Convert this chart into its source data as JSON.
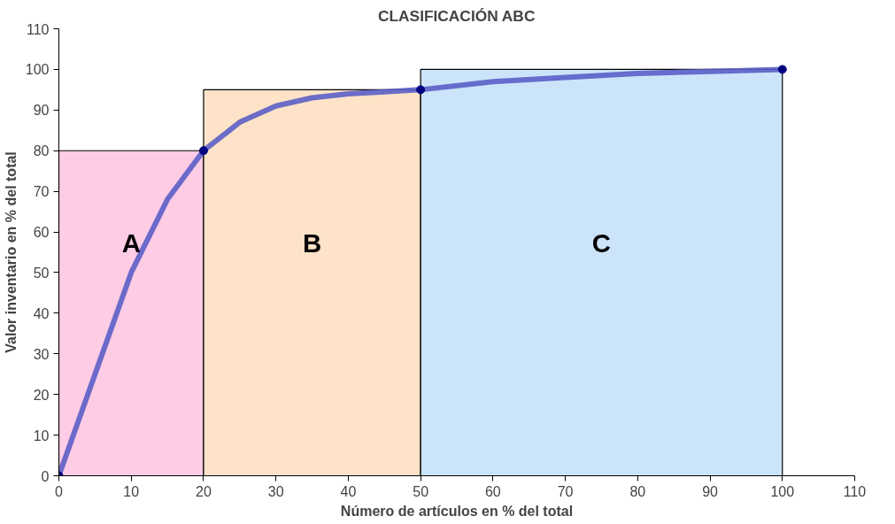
{
  "chart_data": {
    "type": "line",
    "title": "CLASIFICACIÓN ABC",
    "xlabel": "Número de artículos en % del total",
    "ylabel": "Valor inventario en % del total",
    "xlim": [
      0,
      110
    ],
    "ylim": [
      0,
      110
    ],
    "xticks": [
      0,
      10,
      20,
      30,
      40,
      50,
      60,
      70,
      80,
      90,
      100,
      110
    ],
    "yticks": [
      0,
      10,
      20,
      30,
      40,
      50,
      60,
      70,
      80,
      90,
      100,
      110
    ],
    "grid": false,
    "series": [
      {
        "type": "area",
        "color": "#ffcce6",
        "x": [
          0,
          20
        ],
        "values": [
          80,
          80
        ]
      },
      {
        "type": "area",
        "color": "#ffe3c8",
        "x": [
          20,
          50
        ],
        "values": [
          95,
          95
        ]
      },
      {
        "type": "area",
        "color": "#cce4fa",
        "x": [
          50,
          100
        ],
        "values": [
          100,
          100
        ]
      },
      {
        "color": "#5b5fc7",
        "marker": "none",
        "x": [
          0,
          5,
          10,
          15,
          20,
          25,
          30,
          35,
          40,
          45,
          50,
          60,
          70,
          80,
          90,
          100
        ],
        "values": [
          0,
          25,
          50,
          68,
          80,
          87,
          91,
          93,
          94,
          94.5,
          95,
          97,
          98,
          99,
          99.5,
          100
        ]
      },
      {
        "type": "scatter",
        "color": "#000080",
        "marker": "circle",
        "x": [
          0,
          20,
          50,
          100
        ],
        "values": [
          0,
          80,
          95,
          100
        ]
      }
    ],
    "annotations": [
      "A",
      "B",
      "C"
    ]
  }
}
